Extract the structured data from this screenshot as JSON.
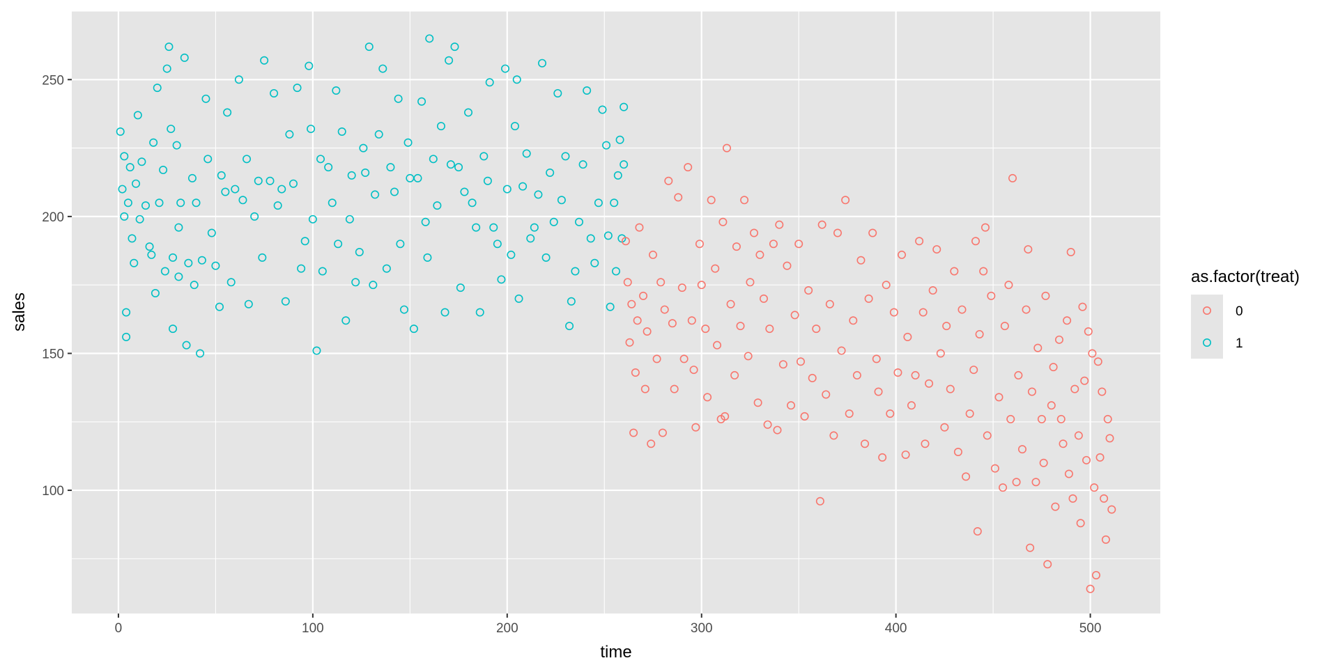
{
  "chart_data": {
    "type": "scatter",
    "title": "",
    "xlabel": "time",
    "ylabel": "sales",
    "xlim": [
      -24,
      536
    ],
    "ylim": [
      55,
      275
    ],
    "x_ticks": [
      0,
      100,
      200,
      300,
      400,
      500
    ],
    "y_ticks": [
      100,
      150,
      200,
      250
    ],
    "grid": true,
    "background": "#e5e5e5",
    "legend": {
      "title": "as.factor(treat)",
      "placement": "right",
      "entries": [
        {
          "label": "0",
          "color": "#f8766d"
        },
        {
          "label": "1",
          "color": "#00bfc4"
        }
      ]
    },
    "series": [
      {
        "name": "1",
        "color": "#00bfc4",
        "points": [
          [
            1,
            231
          ],
          [
            2,
            210
          ],
          [
            3,
            200
          ],
          [
            3,
            222
          ],
          [
            4,
            156
          ],
          [
            4,
            165
          ],
          [
            5,
            205
          ],
          [
            6,
            218
          ],
          [
            7,
            192
          ],
          [
            8,
            183
          ],
          [
            9,
            212
          ],
          [
            10,
            237
          ],
          [
            11,
            199
          ],
          [
            12,
            220
          ],
          [
            14,
            204
          ],
          [
            16,
            189
          ],
          [
            17,
            186
          ],
          [
            18,
            227
          ],
          [
            19,
            172
          ],
          [
            20,
            247
          ],
          [
            21,
            205
          ],
          [
            23,
            217
          ],
          [
            24,
            180
          ],
          [
            25,
            254
          ],
          [
            26,
            262
          ],
          [
            27,
            232
          ],
          [
            28,
            185
          ],
          [
            28,
            159
          ],
          [
            30,
            226
          ],
          [
            31,
            178
          ],
          [
            31,
            196
          ],
          [
            32,
            205
          ],
          [
            34,
            258
          ],
          [
            35,
            153
          ],
          [
            36,
            183
          ],
          [
            38,
            214
          ],
          [
            39,
            175
          ],
          [
            40,
            205
          ],
          [
            42,
            150
          ],
          [
            43,
            184
          ],
          [
            45,
            243
          ],
          [
            46,
            221
          ],
          [
            48,
            194
          ],
          [
            50,
            182
          ],
          [
            52,
            167
          ],
          [
            53,
            215
          ],
          [
            55,
            209
          ],
          [
            56,
            238
          ],
          [
            58,
            176
          ],
          [
            60,
            210
          ],
          [
            62,
            250
          ],
          [
            64,
            206
          ],
          [
            66,
            221
          ],
          [
            67,
            168
          ],
          [
            70,
            200
          ],
          [
            72,
            213
          ],
          [
            74,
            185
          ],
          [
            75,
            257
          ],
          [
            78,
            213
          ],
          [
            80,
            245
          ],
          [
            82,
            204
          ],
          [
            84,
            210
          ],
          [
            86,
            169
          ],
          [
            88,
            230
          ],
          [
            90,
            212
          ],
          [
            92,
            247
          ],
          [
            94,
            181
          ],
          [
            96,
            191
          ],
          [
            98,
            255
          ],
          [
            99,
            232
          ],
          [
            100,
            199
          ],
          [
            102,
            151
          ],
          [
            104,
            221
          ],
          [
            105,
            180
          ],
          [
            108,
            218
          ],
          [
            110,
            205
          ],
          [
            112,
            246
          ],
          [
            113,
            190
          ],
          [
            115,
            231
          ],
          [
            117,
            162
          ],
          [
            119,
            199
          ],
          [
            120,
            215
          ],
          [
            122,
            176
          ],
          [
            124,
            187
          ],
          [
            126,
            225
          ],
          [
            127,
            216
          ],
          [
            129,
            262
          ],
          [
            131,
            175
          ],
          [
            132,
            208
          ],
          [
            134,
            230
          ],
          [
            136,
            254
          ],
          [
            138,
            181
          ],
          [
            140,
            218
          ],
          [
            142,
            209
          ],
          [
            144,
            243
          ],
          [
            145,
            190
          ],
          [
            147,
            166
          ],
          [
            149,
            227
          ],
          [
            150,
            214
          ],
          [
            152,
            159
          ],
          [
            154,
            214
          ],
          [
            156,
            242
          ],
          [
            158,
            198
          ],
          [
            159,
            185
          ],
          [
            160,
            265
          ],
          [
            162,
            221
          ],
          [
            164,
            204
          ],
          [
            166,
            233
          ],
          [
            168,
            165
          ],
          [
            170,
            257
          ],
          [
            171,
            219
          ],
          [
            173,
            262
          ],
          [
            175,
            218
          ],
          [
            176,
            174
          ],
          [
            178,
            209
          ],
          [
            180,
            238
          ],
          [
            182,
            205
          ],
          [
            184,
            196
          ],
          [
            186,
            165
          ],
          [
            188,
            222
          ],
          [
            190,
            213
          ],
          [
            191,
            249
          ],
          [
            193,
            196
          ],
          [
            195,
            190
          ],
          [
            197,
            177
          ],
          [
            199,
            254
          ],
          [
            200,
            210
          ],
          [
            202,
            186
          ],
          [
            204,
            233
          ],
          [
            205,
            250
          ],
          [
            206,
            170
          ],
          [
            208,
            211
          ],
          [
            210,
            223
          ],
          [
            212,
            192
          ],
          [
            214,
            196
          ],
          [
            216,
            208
          ],
          [
            218,
            256
          ],
          [
            220,
            185
          ],
          [
            222,
            216
          ],
          [
            224,
            198
          ],
          [
            226,
            245
          ],
          [
            228,
            206
          ],
          [
            230,
            222
          ],
          [
            232,
            160
          ],
          [
            233,
            169
          ],
          [
            235,
            180
          ],
          [
            237,
            198
          ],
          [
            239,
            219
          ],
          [
            241,
            246
          ],
          [
            243,
            192
          ],
          [
            245,
            183
          ],
          [
            247,
            205
          ],
          [
            249,
            239
          ],
          [
            251,
            226
          ],
          [
            252,
            193
          ],
          [
            253,
            167
          ],
          [
            255,
            205
          ],
          [
            256,
            180
          ],
          [
            257,
            215
          ],
          [
            258,
            228
          ],
          [
            259,
            192
          ],
          [
            260,
            219
          ],
          [
            260,
            240
          ]
        ]
      },
      {
        "name": "0",
        "color": "#f8766d",
        "points": [
          [
            261,
            191
          ],
          [
            262,
            176
          ],
          [
            263,
            154
          ],
          [
            264,
            168
          ],
          [
            265,
            121
          ],
          [
            266,
            143
          ],
          [
            267,
            162
          ],
          [
            268,
            196
          ],
          [
            270,
            171
          ],
          [
            271,
            137
          ],
          [
            272,
            158
          ],
          [
            274,
            117
          ],
          [
            275,
            186
          ],
          [
            277,
            148
          ],
          [
            279,
            176
          ],
          [
            280,
            121
          ],
          [
            281,
            166
          ],
          [
            283,
            213
          ],
          [
            285,
            161
          ],
          [
            286,
            137
          ],
          [
            288,
            207
          ],
          [
            290,
            174
          ],
          [
            291,
            148
          ],
          [
            293,
            218
          ],
          [
            295,
            162
          ],
          [
            296,
            144
          ],
          [
            297,
            123
          ],
          [
            299,
            190
          ],
          [
            300,
            175
          ],
          [
            302,
            159
          ],
          [
            303,
            134
          ],
          [
            305,
            206
          ],
          [
            307,
            181
          ],
          [
            308,
            153
          ],
          [
            310,
            126
          ],
          [
            311,
            198
          ],
          [
            312,
            127
          ],
          [
            313,
            225
          ],
          [
            315,
            168
          ],
          [
            317,
            142
          ],
          [
            318,
            189
          ],
          [
            320,
            160
          ],
          [
            322,
            206
          ],
          [
            324,
            149
          ],
          [
            325,
            176
          ],
          [
            327,
            194
          ],
          [
            329,
            132
          ],
          [
            330,
            186
          ],
          [
            332,
            170
          ],
          [
            334,
            124
          ],
          [
            335,
            159
          ],
          [
            337,
            190
          ],
          [
            339,
            122
          ],
          [
            340,
            197
          ],
          [
            342,
            146
          ],
          [
            344,
            182
          ],
          [
            346,
            131
          ],
          [
            348,
            164
          ],
          [
            350,
            190
          ],
          [
            351,
            147
          ],
          [
            353,
            127
          ],
          [
            355,
            173
          ],
          [
            357,
            141
          ],
          [
            359,
            159
          ],
          [
            361,
            96
          ],
          [
            362,
            197
          ],
          [
            364,
            135
          ],
          [
            366,
            168
          ],
          [
            368,
            120
          ],
          [
            370,
            194
          ],
          [
            372,
            151
          ],
          [
            374,
            206
          ],
          [
            376,
            128
          ],
          [
            378,
            162
          ],
          [
            380,
            142
          ],
          [
            382,
            184
          ],
          [
            384,
            117
          ],
          [
            386,
            170
          ],
          [
            388,
            194
          ],
          [
            390,
            148
          ],
          [
            391,
            136
          ],
          [
            393,
            112
          ],
          [
            395,
            175
          ],
          [
            397,
            128
          ],
          [
            399,
            165
          ],
          [
            401,
            143
          ],
          [
            403,
            186
          ],
          [
            405,
            113
          ],
          [
            406,
            156
          ],
          [
            408,
            131
          ],
          [
            410,
            142
          ],
          [
            412,
            191
          ],
          [
            414,
            165
          ],
          [
            415,
            117
          ],
          [
            417,
            139
          ],
          [
            419,
            173
          ],
          [
            421,
            188
          ],
          [
            423,
            150
          ],
          [
            425,
            123
          ],
          [
            426,
            160
          ],
          [
            428,
            137
          ],
          [
            430,
            180
          ],
          [
            432,
            114
          ],
          [
            434,
            166
          ],
          [
            436,
            105
          ],
          [
            438,
            128
          ],
          [
            440,
            144
          ],
          [
            441,
            191
          ],
          [
            442,
            85
          ],
          [
            443,
            157
          ],
          [
            445,
            180
          ],
          [
            446,
            196
          ],
          [
            447,
            120
          ],
          [
            449,
            171
          ],
          [
            451,
            108
          ],
          [
            453,
            134
          ],
          [
            455,
            101
          ],
          [
            456,
            160
          ],
          [
            458,
            175
          ],
          [
            459,
            126
          ],
          [
            460,
            214
          ],
          [
            462,
            103
          ],
          [
            463,
            142
          ],
          [
            465,
            115
          ],
          [
            467,
            166
          ],
          [
            468,
            188
          ],
          [
            469,
            79
          ],
          [
            470,
            136
          ],
          [
            472,
            103
          ],
          [
            473,
            152
          ],
          [
            475,
            126
          ],
          [
            476,
            110
          ],
          [
            477,
            171
          ],
          [
            478,
            73
          ],
          [
            480,
            131
          ],
          [
            481,
            145
          ],
          [
            482,
            94
          ],
          [
            484,
            155
          ],
          [
            485,
            126
          ],
          [
            486,
            117
          ],
          [
            488,
            162
          ],
          [
            489,
            106
          ],
          [
            490,
            187
          ],
          [
            491,
            97
          ],
          [
            492,
            137
          ],
          [
            494,
            120
          ],
          [
            495,
            88
          ],
          [
            496,
            167
          ],
          [
            497,
            140
          ],
          [
            498,
            111
          ],
          [
            499,
            158
          ],
          [
            500,
            64
          ],
          [
            501,
            150
          ],
          [
            502,
            101
          ],
          [
            503,
            69
          ],
          [
            504,
            147
          ],
          [
            505,
            112
          ],
          [
            506,
            136
          ],
          [
            507,
            97
          ],
          [
            508,
            82
          ],
          [
            509,
            126
          ],
          [
            510,
            119
          ],
          [
            511,
            93
          ]
        ]
      }
    ]
  }
}
